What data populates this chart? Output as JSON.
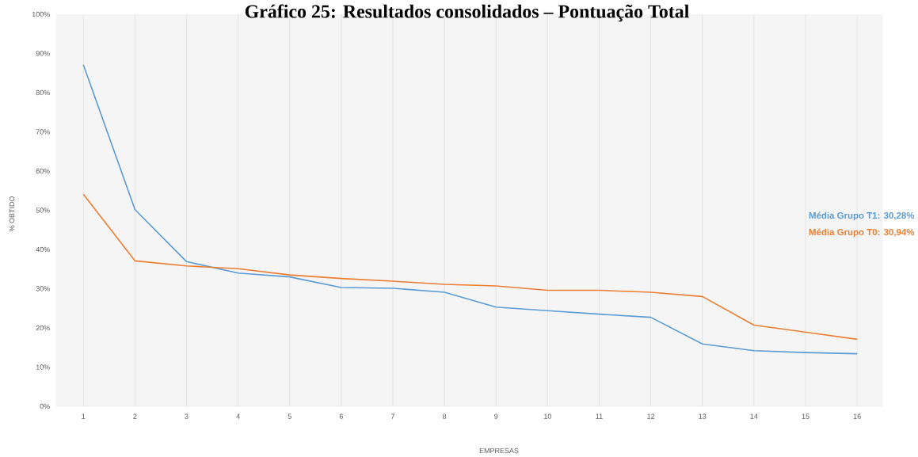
{
  "chart_data": {
    "type": "line",
    "title": "Gráfico 25: Resultados consolidados – Pontuação Total",
    "xlabel": "EMPRESAS",
    "ylabel": "% OBTIDO",
    "categories": [
      "1",
      "2",
      "3",
      "4",
      "5",
      "6",
      "7",
      "8",
      "9",
      "10",
      "11",
      "12",
      "13",
      "14",
      "15",
      "16"
    ],
    "series": [
      {
        "color": "#5b9bd5",
        "values": [
          87.1,
          50.2,
          36.9,
          34.0,
          33.0,
          30.3,
          30.1,
          29.1,
          25.3,
          24.4,
          23.5,
          22.7,
          15.9,
          14.2,
          13.7,
          13.4
        ]
      },
      {
        "color": "#ed7d31",
        "values": [
          54.1,
          37.1,
          35.8,
          35.1,
          33.5,
          32.6,
          31.9,
          31.1,
          30.7,
          29.6,
          29.6,
          29.1,
          28.0,
          20.7,
          18.9,
          17.1
        ]
      }
    ],
    "annotations": [
      "Média Grupo T1: 30,28%",
      "Média Grupo T0: 30,94%"
    ],
    "ylim": [
      0,
      100
    ],
    "yticks": [
      {
        "value": 0,
        "label": "0%"
      },
      {
        "value": 10,
        "label": "10%"
      },
      {
        "value": 20,
        "label": "20%"
      },
      {
        "value": 30,
        "label": "30%"
      },
      {
        "value": 40,
        "label": "40%"
      },
      {
        "value": 50,
        "label": "50%"
      },
      {
        "value": 60,
        "label": "60%"
      },
      {
        "value": 70,
        "label": "70%"
      },
      {
        "value": 80,
        "label": "80%"
      },
      {
        "value": 90,
        "label": "90%"
      },
      {
        "value": 100,
        "label": "100%"
      }
    ],
    "grid": "x",
    "marker": "none",
    "line_style": "solid"
  }
}
